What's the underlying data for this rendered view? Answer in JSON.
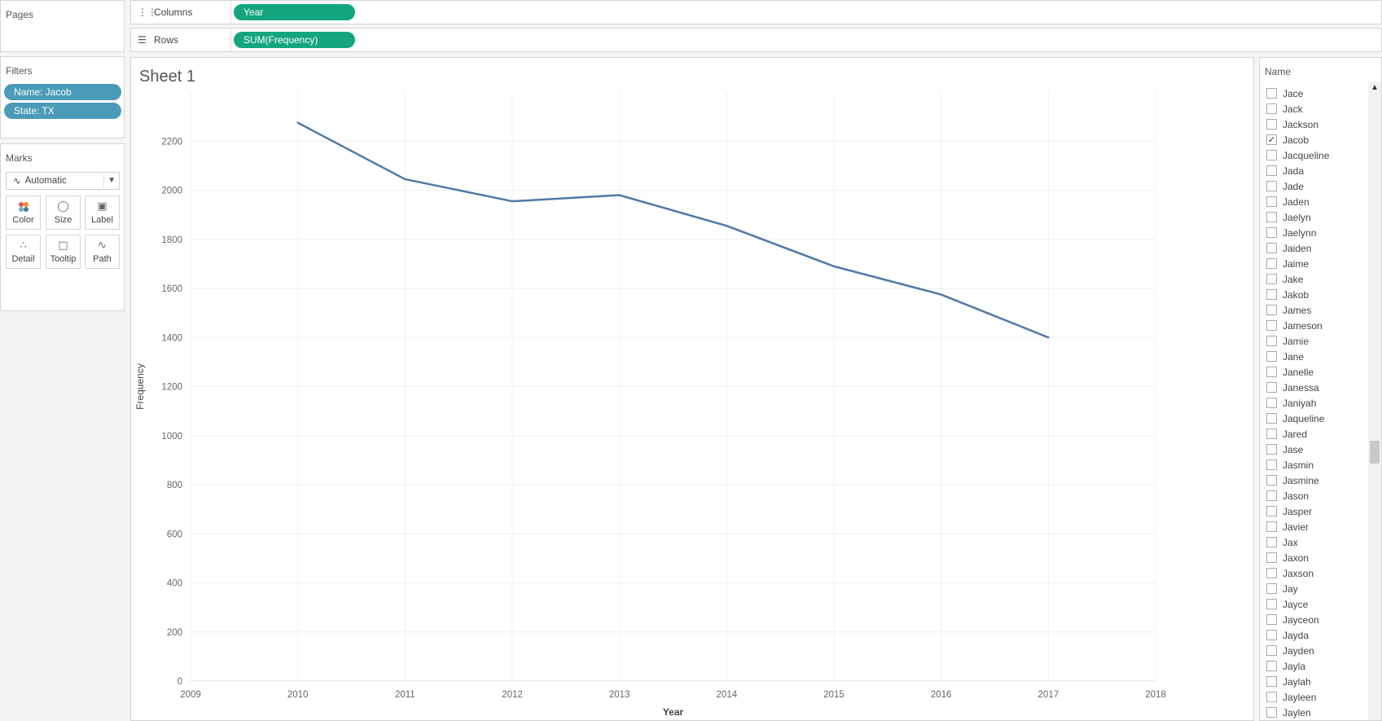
{
  "pages": {
    "title": "Pages"
  },
  "columns_shelf": {
    "label": "Columns",
    "pill": "Year"
  },
  "rows_shelf": {
    "label": "Rows",
    "pill": "SUM(Frequency)"
  },
  "filters": {
    "title": "Filters",
    "pills": [
      "Name: Jacob",
      "State: TX"
    ]
  },
  "marks": {
    "title": "Marks",
    "type": "Automatic",
    "cards": [
      {
        "label": "Color",
        "icon": "color-icon"
      },
      {
        "label": "Size",
        "icon": "size-icon"
      },
      {
        "label": "Label",
        "icon": "label-icon"
      },
      {
        "label": "Detail",
        "icon": "detail-icon"
      },
      {
        "label": "Tooltip",
        "icon": "tooltip-icon"
      },
      {
        "label": "Path",
        "icon": "path-icon"
      }
    ]
  },
  "sheet": {
    "title": "Sheet 1"
  },
  "chart_data": {
    "type": "line",
    "x": [
      2010,
      2011,
      2012,
      2013,
      2014,
      2015,
      2016,
      2017
    ],
    "series": [
      {
        "values": [
          2275,
          2045,
          1955,
          1980,
          1855,
          1690,
          1575,
          1400
        ],
        "color": "#4e79a7"
      }
    ],
    "xlabel": "Year",
    "ylabel": "Frequency",
    "xlim": [
      2009,
      2018
    ],
    "ylim": [
      0,
      2400
    ],
    "xticks": [
      2009,
      2010,
      2011,
      2012,
      2013,
      2014,
      2015,
      2016,
      2017,
      2018
    ],
    "yticks": [
      0,
      200,
      400,
      600,
      800,
      1000,
      1200,
      1400,
      1600,
      1800,
      2000,
      2200
    ],
    "grid": true
  },
  "name_filter": {
    "title": "Name",
    "items": [
      {
        "name": "Jace",
        "checked": false
      },
      {
        "name": "Jack",
        "checked": false
      },
      {
        "name": "Jackson",
        "checked": false
      },
      {
        "name": "Jacob",
        "checked": true
      },
      {
        "name": "Jacqueline",
        "checked": false
      },
      {
        "name": "Jada",
        "checked": false
      },
      {
        "name": "Jade",
        "checked": false
      },
      {
        "name": "Jaden",
        "checked": false
      },
      {
        "name": "Jaelyn",
        "checked": false
      },
      {
        "name": "Jaelynn",
        "checked": false
      },
      {
        "name": "Jaiden",
        "checked": false
      },
      {
        "name": "Jaime",
        "checked": false
      },
      {
        "name": "Jake",
        "checked": false
      },
      {
        "name": "Jakob",
        "checked": false
      },
      {
        "name": "James",
        "checked": false
      },
      {
        "name": "Jameson",
        "checked": false
      },
      {
        "name": "Jamie",
        "checked": false
      },
      {
        "name": "Jane",
        "checked": false
      },
      {
        "name": "Janelle",
        "checked": false
      },
      {
        "name": "Janessa",
        "checked": false
      },
      {
        "name": "Janiyah",
        "checked": false
      },
      {
        "name": "Jaqueline",
        "checked": false
      },
      {
        "name": "Jared",
        "checked": false
      },
      {
        "name": "Jase",
        "checked": false
      },
      {
        "name": "Jasmin",
        "checked": false
      },
      {
        "name": "Jasmine",
        "checked": false
      },
      {
        "name": "Jason",
        "checked": false
      },
      {
        "name": "Jasper",
        "checked": false
      },
      {
        "name": "Javier",
        "checked": false
      },
      {
        "name": "Jax",
        "checked": false
      },
      {
        "name": "Jaxon",
        "checked": false
      },
      {
        "name": "Jaxson",
        "checked": false
      },
      {
        "name": "Jay",
        "checked": false
      },
      {
        "name": "Jayce",
        "checked": false
      },
      {
        "name": "Jayceon",
        "checked": false
      },
      {
        "name": "Jayda",
        "checked": false
      },
      {
        "name": "Jayden",
        "checked": false
      },
      {
        "name": "Jayla",
        "checked": false
      },
      {
        "name": "Jaylah",
        "checked": false
      },
      {
        "name": "Jayleen",
        "checked": false
      },
      {
        "name": "Jaylen",
        "checked": false
      }
    ]
  }
}
